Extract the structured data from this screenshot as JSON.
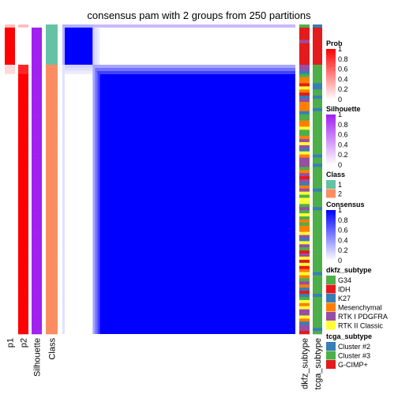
{
  "chart_data": {
    "type": "heatmap",
    "title": "consensus pam with 2 groups from 250 partitions",
    "n_samples": 100,
    "groups": [
      {
        "class": "1",
        "n": 13
      },
      {
        "class": "2",
        "n": 87
      }
    ],
    "annotation_columns": [
      "p1",
      "p2",
      "Silhouette",
      "Class"
    ],
    "row_annotation_labels": [
      "dkfz_subtype",
      "tcga_subtype"
    ],
    "legends": [
      {
        "title": "Prob",
        "type": "gradient",
        "colors": [
          "#ffffff",
          "#ff0000"
        ],
        "ticks": [
          "1",
          "0.8",
          "0.6",
          "0.4",
          "0.2",
          "0"
        ]
      },
      {
        "title": "Silhouette",
        "type": "gradient",
        "colors": [
          "#ffffff",
          "#a020f0"
        ],
        "ticks": [
          "1",
          "0.8",
          "0.6",
          "0.4",
          "0.2",
          "0"
        ]
      },
      {
        "title": "Class",
        "type": "discrete",
        "items": [
          {
            "label": "1",
            "color": "#66c2a5"
          },
          {
            "label": "2",
            "color": "#fc8d62"
          }
        ]
      },
      {
        "title": "Consensus",
        "type": "gradient",
        "colors": [
          "#ffffff",
          "#0000ff"
        ],
        "ticks": [
          "1",
          "0.8",
          "0.6",
          "0.4",
          "0.2",
          "0"
        ]
      },
      {
        "title": "dkfz_subtype",
        "type": "discrete",
        "items": [
          {
            "label": "G34",
            "color": "#4daf4a"
          },
          {
            "label": "IDH",
            "color": "#e41a1c"
          },
          {
            "label": "K27",
            "color": "#377eb8"
          },
          {
            "label": "Mesenchymal",
            "color": "#ff7f00"
          },
          {
            "label": "RTK I PDGFRA",
            "color": "#984ea3"
          },
          {
            "label": "RTK II Classic",
            "color": "#ffff33"
          }
        ]
      },
      {
        "title": "tcga_subtype",
        "type": "discrete",
        "items": [
          {
            "label": "Cluster #2",
            "color": "#377eb8"
          },
          {
            "label": "Cluster #3",
            "color": "#4daf4a"
          },
          {
            "label": "G-CIMP+",
            "color": "#e41a1c"
          }
        ]
      }
    ],
    "colors": {
      "prob": "#ff0000",
      "silhouette": "#a020f0",
      "consensus": "#0000ff",
      "class1": "#66c2a5",
      "class2": "#fc8d62"
    }
  }
}
